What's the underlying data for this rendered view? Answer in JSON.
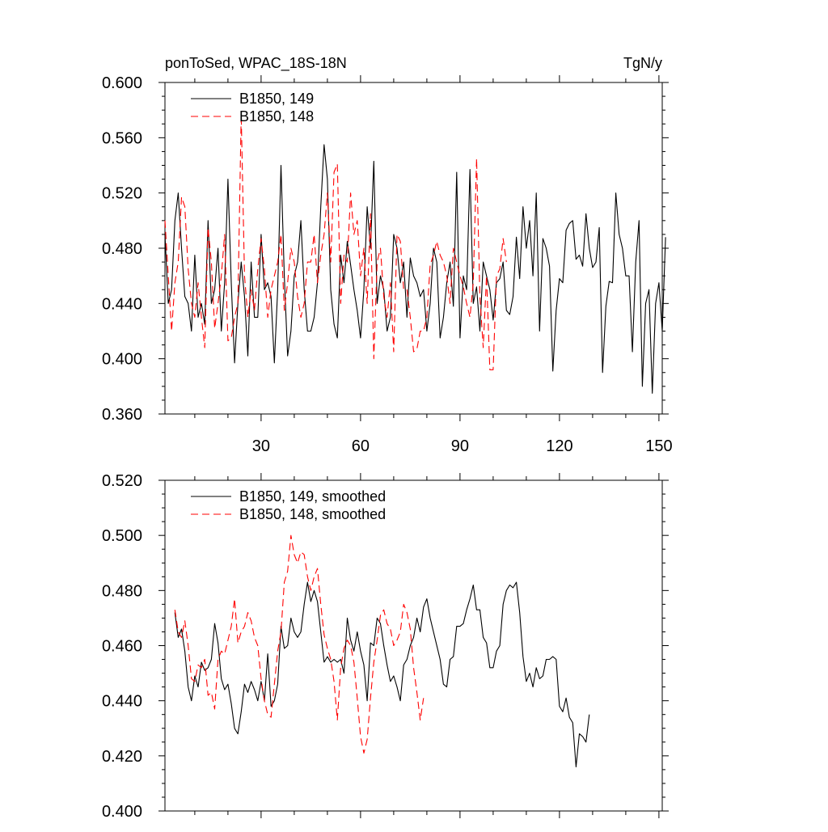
{
  "chart_data": [
    {
      "type": "line",
      "title_left": "ponToSed, WPAC_18S-18N",
      "title_right": "TgN/y",
      "xlim": [
        1,
        151
      ],
      "ylim": [
        0.36,
        0.6
      ],
      "xticks": [
        30,
        60,
        90,
        120,
        150
      ],
      "xtick_labels": [
        "30",
        "60",
        "90",
        "120",
        "150"
      ],
      "yticks": [
        0.36,
        0.4,
        0.44,
        0.48,
        0.52,
        0.56,
        0.6
      ],
      "ytick_labels": [
        "0.360",
        "0.400",
        "0.440",
        "0.480",
        "0.520",
        "0.560",
        "0.600"
      ],
      "grid": false,
      "legend_position": "top-left",
      "series": [
        {
          "name": "B1850, 149",
          "color": "#000000",
          "dash": "solid",
          "x_start": 1,
          "values": [
            0.49,
            0.44,
            0.45,
            0.5,
            0.52,
            0.48,
            0.445,
            0.44,
            0.42,
            0.475,
            0.43,
            0.44,
            0.425,
            0.5,
            0.44,
            0.45,
            0.48,
            0.42,
            0.455,
            0.53,
            0.455,
            0.397,
            0.44,
            0.47,
            0.445,
            0.402,
            0.47,
            0.43,
            0.43,
            0.49,
            0.45,
            0.455,
            0.445,
            0.397,
            0.45,
            0.54,
            0.46,
            0.402,
            0.42,
            0.46,
            0.47,
            0.5,
            0.45,
            0.42,
            0.42,
            0.43,
            0.455,
            0.51,
            0.555,
            0.53,
            0.45,
            0.425,
            0.415,
            0.475,
            0.455,
            0.485,
            0.468,
            0.45,
            0.435,
            0.415,
            0.45,
            0.51,
            0.48,
            0.543,
            0.44,
            0.46,
            0.45,
            0.42,
            0.43,
            0.49,
            0.48,
            0.455,
            0.47,
            0.43,
            0.473,
            0.46,
            0.455,
            0.445,
            0.45,
            0.42,
            0.44,
            0.48,
            0.47,
            0.415,
            0.43,
            0.455,
            0.47,
            0.438,
            0.535,
            0.415,
            0.46,
            0.45,
            0.537,
            0.44,
            0.452,
            0.42,
            0.47,
            0.46,
            0.45,
            0.428,
            0.455,
            0.458,
            0.47,
            0.435,
            0.432,
            0.445,
            0.488,
            0.458,
            0.51,
            0.48,
            0.5,
            0.46,
            0.52,
            0.42,
            0.487,
            0.48,
            0.467,
            0.391,
            0.435,
            0.458,
            0.455,
            0.493,
            0.498,
            0.5,
            0.472,
            0.475,
            0.467,
            0.505,
            0.48,
            0.466,
            0.47,
            0.495,
            0.39,
            0.438,
            0.456,
            0.455,
            0.52,
            0.49,
            0.48,
            0.46,
            0.46,
            0.405,
            0.47,
            0.5,
            0.38,
            0.44,
            0.45,
            0.375,
            0.44,
            0.455,
            0.42,
            0.488
          ]
        },
        {
          "name": "B1850, 148",
          "color": "#ff0000",
          "dash": "dashed",
          "x_start": 1,
          "values": [
            0.5,
            0.46,
            0.42,
            0.455,
            0.47,
            0.517,
            0.51,
            0.465,
            0.44,
            0.43,
            0.455,
            0.43,
            0.408,
            0.495,
            0.47,
            0.422,
            0.44,
            0.46,
            0.49,
            0.413,
            0.415,
            0.43,
            0.44,
            0.577,
            0.46,
            0.43,
            0.45,
            0.435,
            0.465,
            0.487,
            0.465,
            0.43,
            0.45,
            0.46,
            0.47,
            0.49,
            0.435,
            0.455,
            0.48,
            0.47,
            0.445,
            0.43,
            0.44,
            0.47,
            0.47,
            0.49,
            0.455,
            0.475,
            0.49,
            0.52,
            0.47,
            0.535,
            0.541,
            0.44,
            0.475,
            0.47,
            0.52,
            0.49,
            0.5,
            0.46,
            0.48,
            0.44,
            0.505,
            0.4,
            0.47,
            0.48,
            0.445,
            0.43,
            0.455,
            0.405,
            0.49,
            0.485,
            0.45,
            0.45,
            0.43,
            0.405,
            0.407,
            0.42,
            0.42,
            0.43,
            0.468,
            0.475,
            0.485,
            0.475,
            0.47,
            0.46,
            0.44,
            0.48,
            0.47,
            0.46,
            0.452,
            0.44,
            0.43,
            0.455,
            0.545,
            0.445,
            0.408,
            0.46,
            0.392,
            0.392,
            0.46,
            0.465,
            0.487,
            0.47
          ]
        }
      ]
    },
    {
      "type": "line",
      "xlim": [
        1,
        151
      ],
      "ylim": [
        0.4,
        0.52
      ],
      "xticks": [
        30,
        60,
        90,
        120,
        150
      ],
      "yticks": [
        0.4,
        0.42,
        0.44,
        0.46,
        0.48,
        0.5,
        0.52
      ],
      "ytick_labels": [
        "0.400",
        "0.420",
        "0.440",
        "0.460",
        "0.480",
        "0.500",
        "0.520"
      ],
      "grid": false,
      "legend_position": "top-left",
      "series": [
        {
          "name": "B1850, 149, smoothed",
          "color": "#000000",
          "dash": "solid",
          "x_start": 4,
          "values": [
            0.472,
            0.463,
            0.466,
            0.458,
            0.445,
            0.44,
            0.449,
            0.445,
            0.454,
            0.451,
            0.452,
            0.455,
            0.468,
            0.461,
            0.448,
            0.444,
            0.446,
            0.439,
            0.43,
            0.428,
            0.436,
            0.446,
            0.443,
            0.447,
            0.444,
            0.44,
            0.447,
            0.44,
            0.457,
            0.438,
            0.44,
            0.446,
            0.467,
            0.459,
            0.46,
            0.47,
            0.465,
            0.463,
            0.465,
            0.475,
            0.483,
            0.476,
            0.48,
            0.476,
            0.465,
            0.454,
            0.456,
            0.454,
            0.455,
            0.454,
            0.455,
            0.45,
            0.47,
            0.462,
            0.458,
            0.465,
            0.458,
            0.453,
            0.44,
            0.461,
            0.46,
            0.47,
            0.468,
            0.46,
            0.453,
            0.447,
            0.449,
            0.445,
            0.44,
            0.453,
            0.455,
            0.46,
            0.463,
            0.47,
            0.465,
            0.474,
            0.477,
            0.47,
            0.465,
            0.46,
            0.455,
            0.446,
            0.445,
            0.455,
            0.456,
            0.467,
            0.467,
            0.468,
            0.473,
            0.477,
            0.482,
            0.473,
            0.473,
            0.463,
            0.461,
            0.452,
            0.452,
            0.458,
            0.46,
            0.475,
            0.48,
            0.482,
            0.481,
            0.483,
            0.472,
            0.456,
            0.447,
            0.45,
            0.445,
            0.452,
            0.448,
            0.449,
            0.455,
            0.455,
            0.456,
            0.455,
            0.438,
            0.436,
            0.441,
            0.434,
            0.432,
            0.416,
            0.428,
            0.427,
            0.425,
            0.435
          ]
        },
        {
          "name": "B1850, 148, smoothed",
          "color": "#ff0000",
          "dash": "dashed",
          "x_start": 4,
          "values": [
            0.473,
            0.465,
            0.463,
            0.469,
            0.46,
            0.448,
            0.447,
            0.453,
            0.452,
            0.455,
            0.442,
            0.443,
            0.437,
            0.455,
            0.458,
            0.457,
            0.462,
            0.467,
            0.477,
            0.461,
            0.465,
            0.467,
            0.472,
            0.469,
            0.463,
            0.46,
            0.448,
            0.44,
            0.435,
            0.434,
            0.446,
            0.458,
            0.465,
            0.483,
            0.487,
            0.5,
            0.493,
            0.49,
            0.494,
            0.493,
            0.485,
            0.48,
            0.485,
            0.488,
            0.475,
            0.464,
            0.459,
            0.455,
            0.447,
            0.433,
            0.452,
            0.459,
            0.462,
            0.46,
            0.454,
            0.441,
            0.427,
            0.421,
            0.426,
            0.441,
            0.454,
            0.462,
            0.471,
            0.473,
            0.468,
            0.466,
            0.46,
            0.462,
            0.465,
            0.475,
            0.472,
            0.466,
            0.452,
            0.443,
            0.433,
            0.441
          ]
        }
      ]
    }
  ]
}
